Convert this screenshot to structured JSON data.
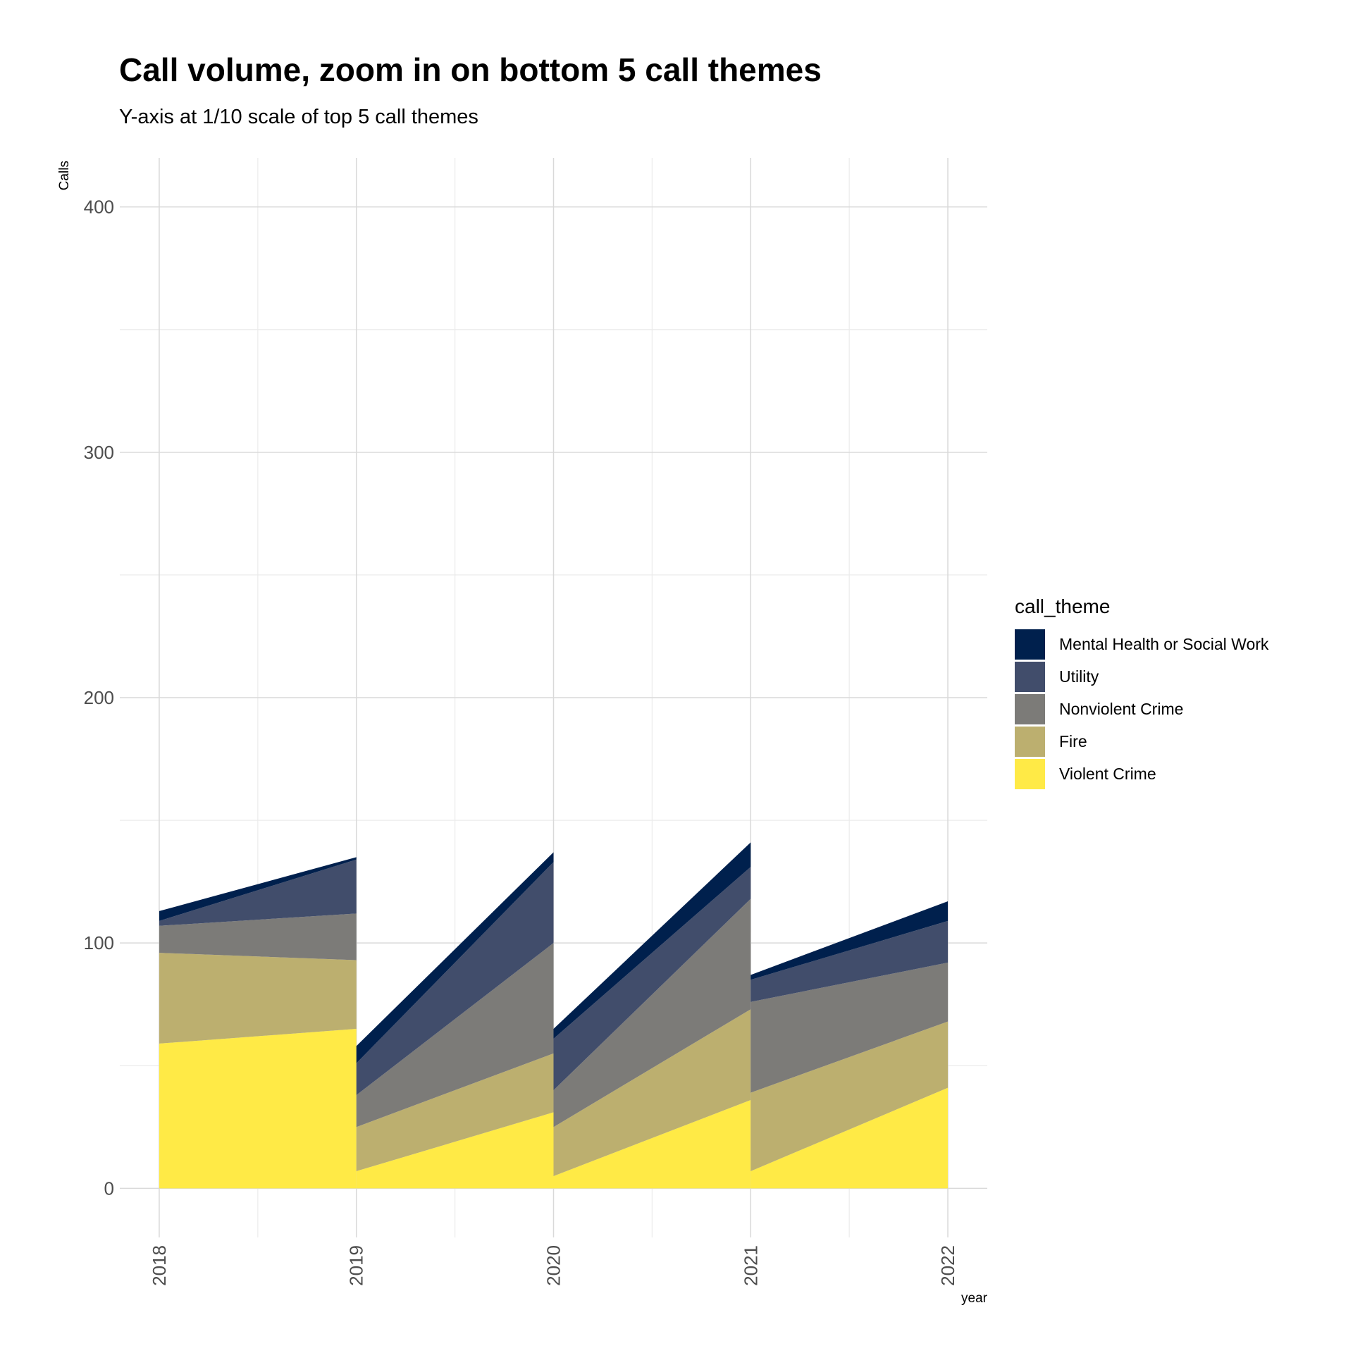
{
  "chart_data": {
    "type": "area",
    "title": "Call volume, zoom in on bottom 5 call themes",
    "subtitle": "Y-axis at 1/10 scale of top 5 call themes",
    "xlabel": "year",
    "ylabel": "Calls",
    "ylim": [
      -20,
      420
    ],
    "xlim": [
      2017.8,
      2022.2
    ],
    "y_ticks": [
      0,
      100,
      200,
      300,
      400
    ],
    "x_ticks": [
      "2018",
      "2019",
      "2020",
      "2021",
      "2022"
    ],
    "grid": true,
    "legend_title": "call_theme",
    "legend_position": "right",
    "stacked": true,
    "segments": [
      {
        "x": [
          2018,
          2019
        ],
        "series": {
          "Violent Crime": [
            59,
            65
          ],
          "Fire": [
            37,
            28
          ],
          "Nonviolent Crime": [
            11,
            19
          ],
          "Utility": [
            2,
            22
          ],
          "Mental Health or Social Work": [
            4,
            1
          ]
        }
      },
      {
        "x": [
          2019,
          2020
        ],
        "series": {
          "Violent Crime": [
            7,
            31
          ],
          "Fire": [
            18,
            24
          ],
          "Nonviolent Crime": [
            13,
            45
          ],
          "Utility": [
            13,
            33
          ],
          "Mental Health or Social Work": [
            7,
            4
          ]
        }
      },
      {
        "x": [
          2020,
          2021
        ],
        "series": {
          "Violent Crime": [
            5,
            36
          ],
          "Fire": [
            20,
            37
          ],
          "Nonviolent Crime": [
            15,
            45
          ],
          "Utility": [
            21,
            13
          ],
          "Mental Health or Social Work": [
            4,
            10
          ]
        }
      },
      {
        "x": [
          2021,
          2022
        ],
        "series": {
          "Violent Crime": [
            7,
            41
          ],
          "Fire": [
            32,
            27
          ],
          "Nonviolent Crime": [
            37,
            24
          ],
          "Utility": [
            9,
            17
          ],
          "Mental Health or Social Work": [
            2,
            8
          ]
        }
      }
    ],
    "stack_order": [
      "Violent Crime",
      "Fire",
      "Nonviolent Crime",
      "Utility",
      "Mental Health or Social Work"
    ],
    "legend": [
      {
        "name": "Mental Health or Social Work",
        "color": "#00204d"
      },
      {
        "name": "Utility",
        "color": "#414d6b"
      },
      {
        "name": "Nonviolent Crime",
        "color": "#7c7b78"
      },
      {
        "name": "Fire",
        "color": "#bcaf6f"
      },
      {
        "name": "Violent Crime",
        "color": "#ffea46"
      }
    ]
  }
}
